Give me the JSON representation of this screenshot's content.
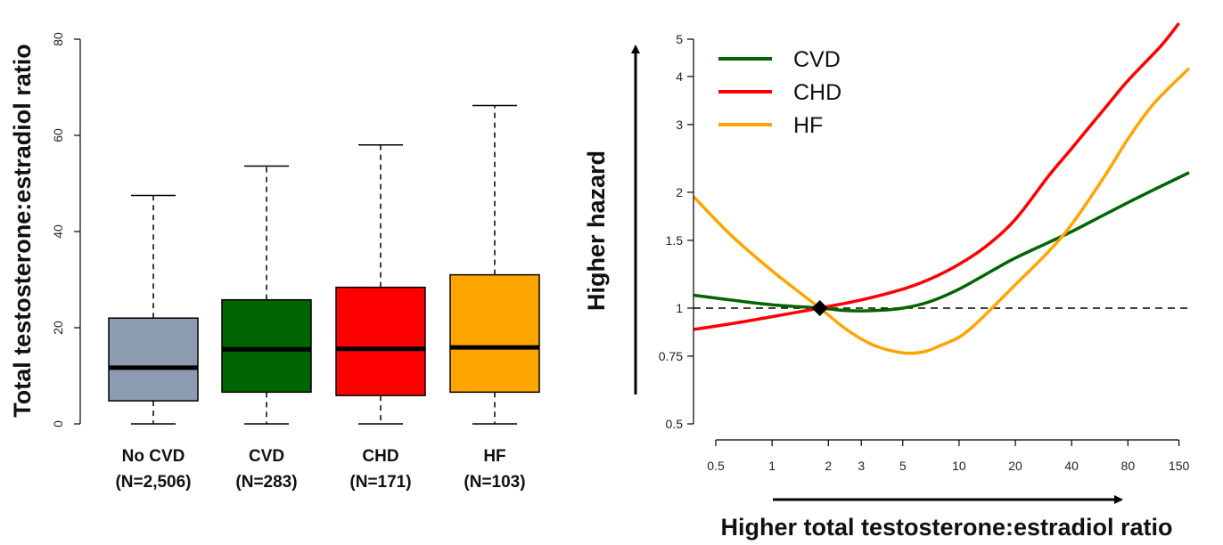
{
  "chart_data": [
    {
      "type": "box",
      "ylabel": "Total testosterone:estradiol ratio",
      "ylim": [
        0,
        80
      ],
      "yticks": [
        "0",
        "20",
        "40",
        "60",
        "80"
      ],
      "groups": [
        {
          "label": "No CVD",
          "n_label": "(N=2,506)",
          "color": "#8c9bb0",
          "whisker_low": 0,
          "q1": 4.8,
          "median": 11.7,
          "q3": 22.0,
          "whisker_high": 47.5
        },
        {
          "label": "CVD",
          "n_label": "(N=283)",
          "color": "#006400",
          "whisker_low": 0,
          "q1": 6.6,
          "median": 15.5,
          "q3": 25.8,
          "whisker_high": 53.6
        },
        {
          "label": "CHD",
          "n_label": "(N=171)",
          "color": "#ff0000",
          "whisker_low": 0,
          "q1": 5.9,
          "median": 15.6,
          "q3": 28.4,
          "whisker_high": 58.0
        },
        {
          "label": "HF",
          "n_label": "(N=103)",
          "color": "#ffa500",
          "whisker_low": 0,
          "q1": 6.6,
          "median": 15.9,
          "q3": 31.0,
          "whisker_high": 66.2
        }
      ]
    },
    {
      "type": "line",
      "xlabel": "Higher total testosterone:estradiol ratio",
      "ylabel": "Higher hazard",
      "x_scale": "log",
      "y_scale": "log",
      "xlim": [
        0.38,
        170
      ],
      "ylim": [
        0.5,
        5
      ],
      "xticks": [
        "0.5",
        "1",
        "2",
        "3",
        "5",
        "10",
        "20",
        "40",
        "80",
        "150"
      ],
      "yticks": [
        "0.5",
        "0.75",
        "1",
        "1.5",
        "2",
        "3",
        "4",
        "5"
      ],
      "reference_line": 1,
      "reference_point": {
        "x": 1.8,
        "y": 1
      },
      "legend_position": "top-left",
      "series": [
        {
          "name": "CVD",
          "color": "#006400",
          "points": [
            [
              0.38,
              1.08
            ],
            [
              0.6,
              1.05
            ],
            [
              1,
              1.02
            ],
            [
              1.8,
              1.0
            ],
            [
              2.5,
              0.985
            ],
            [
              3.5,
              0.985
            ],
            [
              5,
              1.0
            ],
            [
              7,
              1.04
            ],
            [
              10,
              1.12
            ],
            [
              15,
              1.25
            ],
            [
              20,
              1.35
            ],
            [
              30,
              1.48
            ],
            [
              40,
              1.58
            ],
            [
              60,
              1.75
            ],
            [
              80,
              1.88
            ],
            [
              110,
              2.03
            ],
            [
              170,
              2.25
            ]
          ]
        },
        {
          "name": "CHD",
          "color": "#ff0000",
          "points": [
            [
              0.38,
              0.88
            ],
            [
              0.6,
              0.91
            ],
            [
              1,
              0.95
            ],
            [
              1.8,
              1.0
            ],
            [
              3,
              1.05
            ],
            [
              5,
              1.12
            ],
            [
              7,
              1.19
            ],
            [
              10,
              1.3
            ],
            [
              14,
              1.45
            ],
            [
              20,
              1.7
            ],
            [
              30,
              2.2
            ],
            [
              40,
              2.6
            ],
            [
              60,
              3.3
            ],
            [
              80,
              3.9
            ],
            [
              120,
              4.8
            ],
            [
              150,
              5.5
            ]
          ]
        },
        {
          "name": "HF",
          "color": "#ffa500",
          "points": [
            [
              0.38,
              1.95
            ],
            [
              0.6,
              1.55
            ],
            [
              1,
              1.25
            ],
            [
              1.8,
              1.0
            ],
            [
              2.5,
              0.88
            ],
            [
              3.5,
              0.8
            ],
            [
              5,
              0.765
            ],
            [
              6.5,
              0.77
            ],
            [
              8,
              0.8
            ],
            [
              10,
              0.84
            ],
            [
              12,
              0.9
            ],
            [
              15,
              1.0
            ],
            [
              20,
              1.15
            ],
            [
              30,
              1.4
            ],
            [
              40,
              1.65
            ],
            [
              60,
              2.2
            ],
            [
              80,
              2.75
            ],
            [
              110,
              3.4
            ],
            [
              170,
              4.2
            ]
          ]
        }
      ]
    }
  ]
}
